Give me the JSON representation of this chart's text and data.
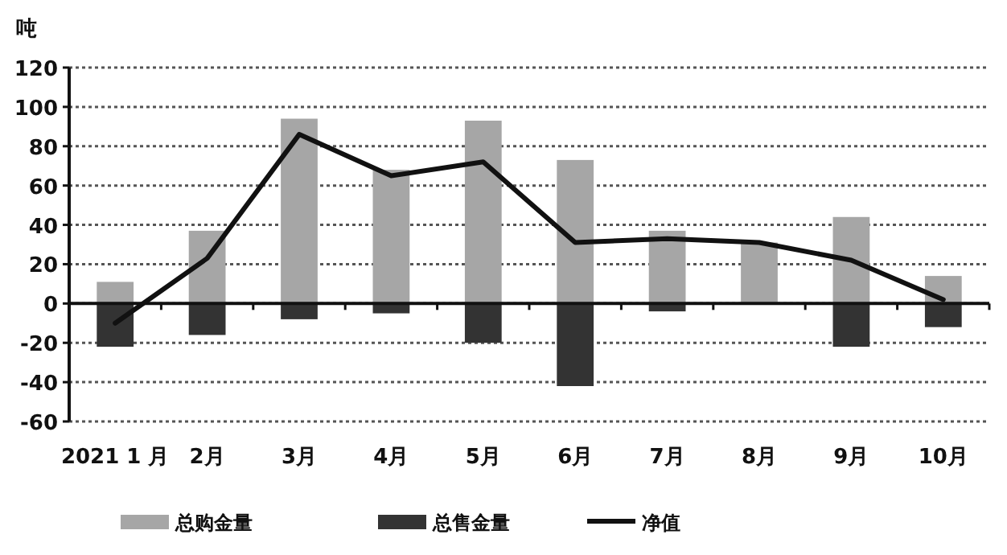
{
  "chart_data": {
    "type": "bar",
    "ylabel": "吨",
    "categories": [
      "2021 1 月",
      "2月",
      "3月",
      "4月",
      "5月",
      "6月",
      "7月",
      "8月",
      "9月",
      "10月"
    ],
    "series": [
      {
        "name": "总购金量",
        "color": "#a6a6a6",
        "values": [
          11,
          37,
          94,
          68,
          93,
          73,
          37,
          31,
          44,
          14
        ]
      },
      {
        "name": "总售金量",
        "color": "#333333",
        "values": [
          -22,
          -16,
          -8,
          -5,
          -20,
          -42,
          -4,
          null,
          -22,
          -12
        ]
      },
      {
        "name": "净值",
        "type": "line",
        "color": "#111111",
        "values": [
          -10,
          23,
          86,
          65,
          72,
          31,
          33,
          31,
          22,
          2
        ]
      }
    ],
    "ylim": [
      -60,
      120
    ],
    "yticks": [
      -60,
      -40,
      -20,
      0,
      20,
      40,
      60,
      80,
      100,
      120
    ],
    "grid": "y",
    "legend": "bottom",
    "stacked": true
  }
}
